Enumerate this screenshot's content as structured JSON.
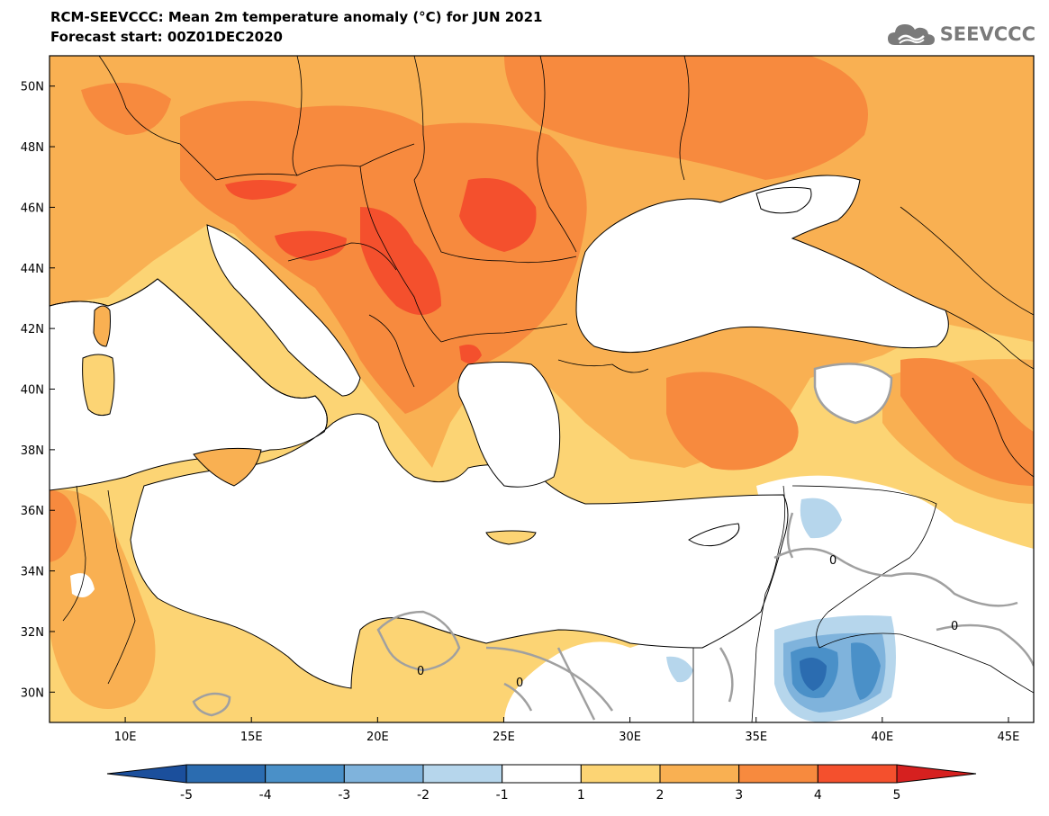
{
  "header": {
    "title": "RCM-SEEVCCC: Mean 2m temperature anomaly (°C) for JUN 2021",
    "subtitle": "Forecast start: 00Z01DEC2020"
  },
  "logo": {
    "text": "SEEVCCC",
    "icon": "cloud-logo-icon"
  },
  "map": {
    "lat_labels": [
      "50N",
      "48N",
      "46N",
      "44N",
      "42N",
      "40N",
      "38N",
      "36N",
      "34N",
      "32N",
      "30N"
    ],
    "lon_labels": [
      "10E",
      "15E",
      "20E",
      "25E",
      "30E",
      "35E",
      "40E",
      "45E"
    ],
    "lat_range": [
      29,
      51
    ],
    "lon_range": [
      7,
      46
    ],
    "contour_label": "0"
  },
  "colorbar": {
    "labels": [
      "-5",
      "-4",
      "-3",
      "-2",
      "-1",
      "1",
      "2",
      "3",
      "4",
      "5"
    ],
    "colors": [
      "#1b4f9c",
      "#2b6cb0",
      "#4a90c8",
      "#7fb3dc",
      "#b6d6ec",
      "#ffffff",
      "#fcd474",
      "#f9b052",
      "#f78a3e",
      "#f4502d",
      "#d6201f"
    ]
  }
}
